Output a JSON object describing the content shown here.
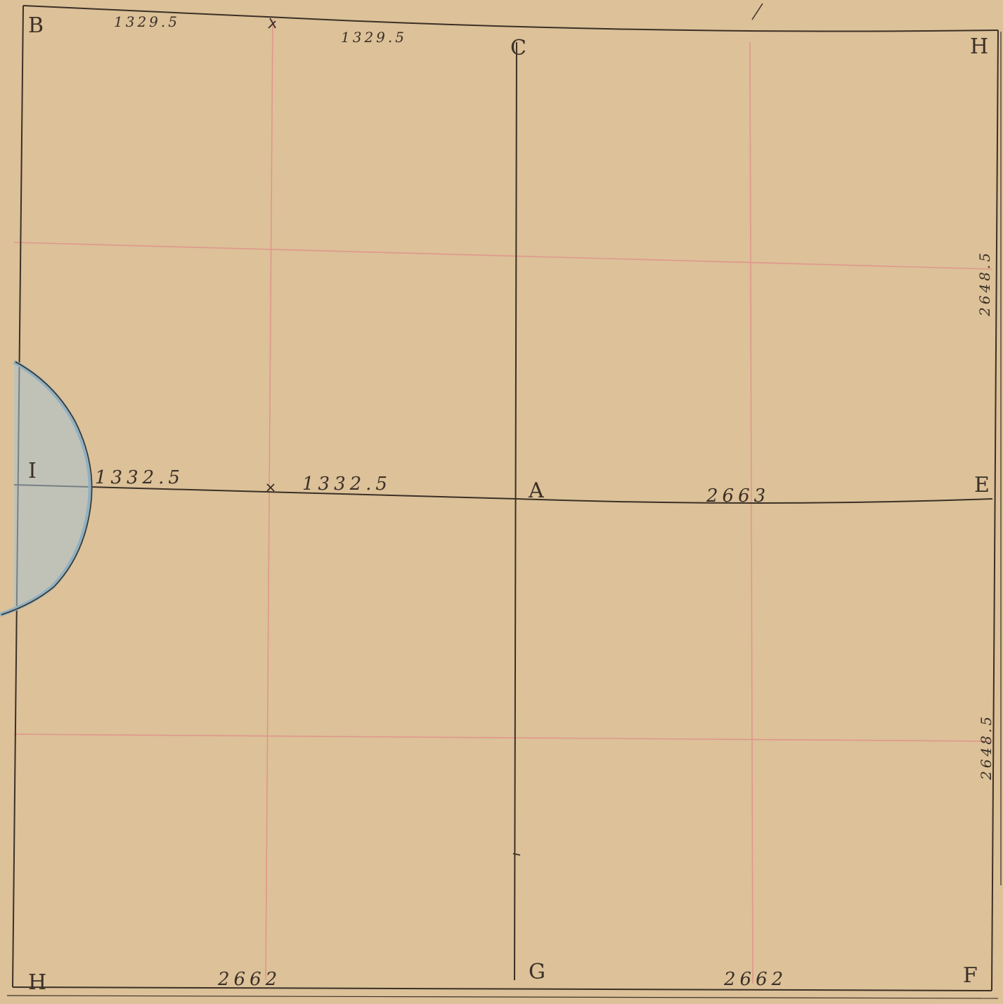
{
  "corner_labels": {
    "b": "B",
    "c": "C",
    "h_top": "H",
    "i": "I",
    "a": "A",
    "e": "E",
    "h_bottom": "H",
    "g": "G",
    "f": "F"
  },
  "measurements": {
    "top_left": "1329.5",
    "top_right": "1329.5",
    "middle_left": "1332.5",
    "middle_center": "1332.5",
    "middle_right": "2663",
    "right_upper": "2648.5",
    "right_lower": "2648.5",
    "bottom_left": "2662",
    "bottom_right": "2662"
  },
  "colors": {
    "paper": "#d9be94",
    "ink": "#3b3026",
    "grid_red": "#e0908a",
    "water_blue": "#a9c2cf"
  }
}
